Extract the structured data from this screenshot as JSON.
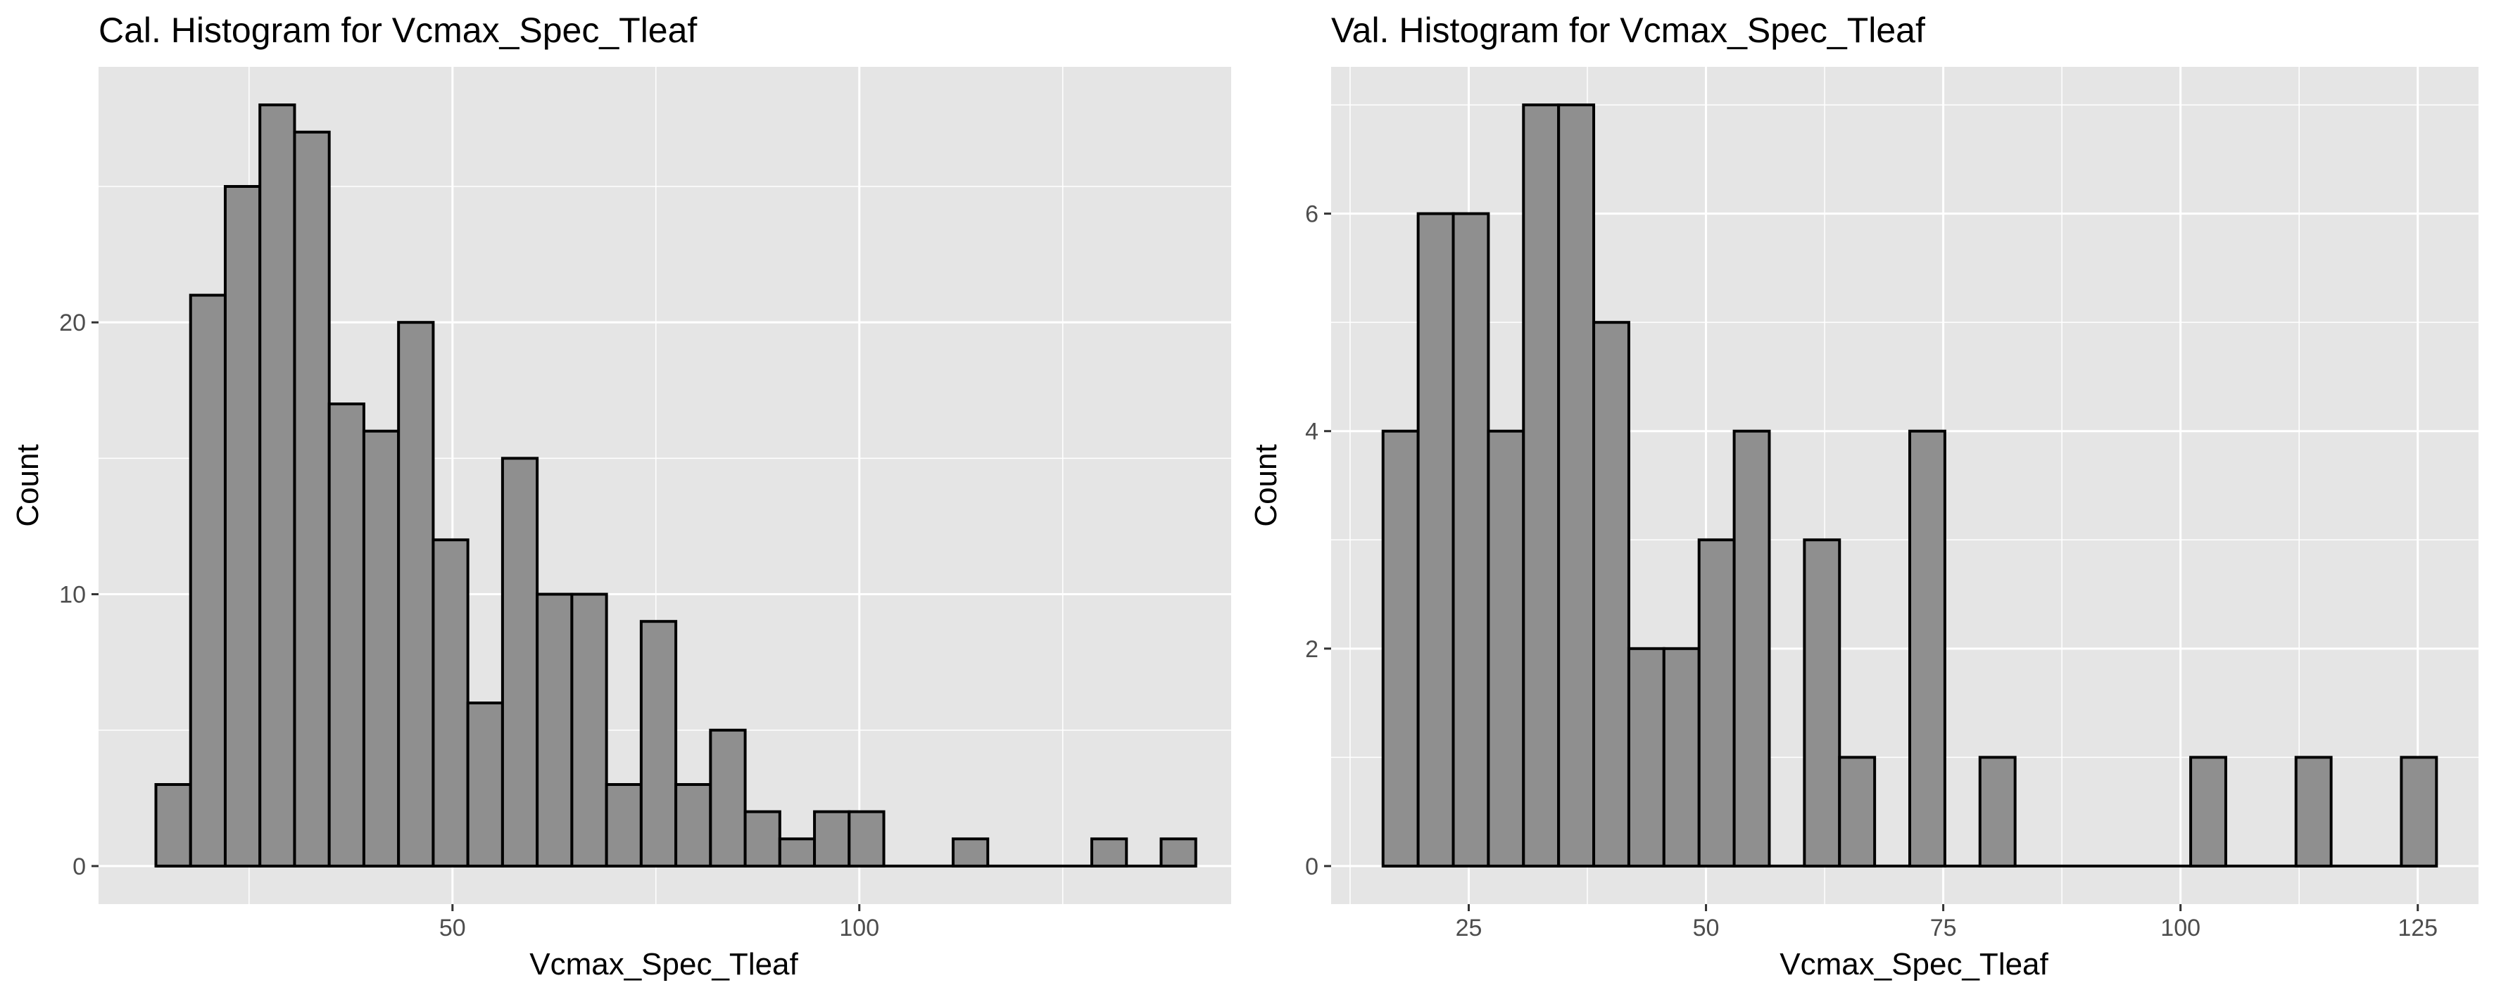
{
  "colors": {
    "panel_background": "#e5e5e5",
    "grid": "#ffffff",
    "bar_fill": "#8f8f8f",
    "bar_outline": "#000000",
    "tick_text": "#4d4d4d",
    "tick_mark": "#333333"
  },
  "chart_data": [
    {
      "type": "bar",
      "subtype": "histogram",
      "title": "Cal. Histogram for Vcmax_Spec_Tleaf",
      "xlabel": "Vcmax_Spec_Tleaf",
      "ylabel": "Count",
      "grid": true,
      "legend": "none",
      "xlim": [
        6.5,
        145.7
      ],
      "ylim": [
        -1.4,
        29.4
      ],
      "x_ticks": [
        50,
        100
      ],
      "y_ticks": [
        0,
        10,
        20
      ],
      "bin_width": 4.26,
      "bin_start": 13.55,
      "values": [
        3,
        21,
        25,
        28,
        27,
        17,
        16,
        20,
        12,
        6,
        15,
        10,
        10,
        3,
        9,
        3,
        5,
        2,
        1,
        2,
        2,
        0,
        0,
        1,
        0,
        0,
        0,
        1,
        0,
        1
      ]
    },
    {
      "type": "bar",
      "subtype": "histogram",
      "title": "Val. Histogram for Vcmax_Spec_Tleaf",
      "xlabel": "Vcmax_Spec_Tleaf",
      "ylabel": "Count",
      "grid": true,
      "legend": "none",
      "xlim": [
        10.5,
        131.4
      ],
      "ylim": [
        -0.35,
        7.35
      ],
      "x_ticks": [
        25,
        50,
        75,
        100,
        125
      ],
      "y_ticks": [
        0,
        2,
        4,
        6
      ],
      "bin_width": 3.7,
      "bin_start": 15.97,
      "values": [
        4,
        6,
        6,
        4,
        7,
        7,
        5,
        2,
        2,
        3,
        4,
        0,
        3,
        1,
        0,
        4,
        0,
        1,
        0,
        0,
        0,
        0,
        0,
        1,
        0,
        0,
        1,
        0,
        0,
        1
      ]
    }
  ]
}
